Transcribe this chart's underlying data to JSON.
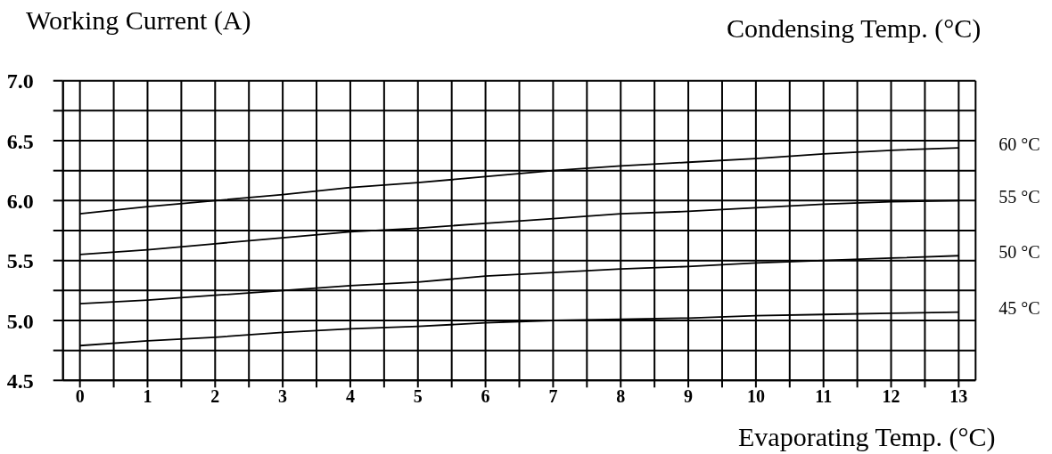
{
  "chart_data": {
    "type": "line",
    "ylabel": "Working Current (A)",
    "legend_title": "Condensing Temp. (°C)",
    "xlabel": "Evaporating Temp. (°C)",
    "x": [
      0,
      1,
      2,
      3,
      4,
      5,
      6,
      7,
      8,
      9,
      10,
      11,
      12,
      13
    ],
    "series": [
      {
        "name": "60 °C",
        "color": "#000000",
        "values": [
          5.89,
          5.95,
          6.0,
          6.05,
          6.11,
          6.15,
          6.2,
          6.25,
          6.29,
          6.32,
          6.35,
          6.39,
          6.42,
          6.44
        ]
      },
      {
        "name": "55 °C",
        "color": "#000000",
        "values": [
          5.55,
          5.59,
          5.64,
          5.69,
          5.74,
          5.77,
          5.81,
          5.85,
          5.89,
          5.91,
          5.94,
          5.97,
          5.99,
          6.0
        ]
      },
      {
        "name": "50 °C",
        "color": "#000000",
        "values": [
          5.14,
          5.17,
          5.21,
          5.25,
          5.29,
          5.32,
          5.37,
          5.4,
          5.43,
          5.45,
          5.48,
          5.5,
          5.52,
          5.54
        ]
      },
      {
        "name": "45 °C",
        "color": "#000000",
        "values": [
          4.79,
          4.83,
          4.86,
          4.9,
          4.93,
          4.95,
          4.98,
          5.0,
          5.01,
          5.02,
          5.04,
          5.05,
          5.06,
          5.07
        ]
      }
    ],
    "xlim": [
      -0.25,
      13.25
    ],
    "ylim": [
      4.5,
      7.0
    ],
    "xticks": [
      0,
      {
        "value": 0.5,
        "label": null
      },
      1,
      {
        "value": 1.5,
        "label": null
      },
      2,
      {
        "value": 2.5,
        "label": null
      },
      3,
      {
        "value": 3.5,
        "label": null
      },
      4,
      {
        "value": 4.5,
        "label": null
      },
      5,
      {
        "value": 5.5,
        "label": null
      },
      6,
      {
        "value": 6.5,
        "label": null
      },
      7,
      {
        "value": 7.5,
        "label": null
      },
      8,
      {
        "value": 8.5,
        "label": null
      },
      9,
      {
        "value": 9.5,
        "label": null
      },
      10,
      {
        "value": 10.5,
        "label": null
      },
      11,
      {
        "value": 11.5,
        "label": null
      },
      12,
      {
        "value": 12.5,
        "label": null
      },
      13
    ],
    "yticks": [
      4.5,
      {
        "value": 4.75,
        "label": null
      },
      {
        "value": 5,
        "label": "5.0"
      },
      {
        "value": 5.25,
        "label": null
      },
      5.5,
      {
        "value": 5.75,
        "label": null
      },
      {
        "value": 6,
        "label": "6.0"
      },
      {
        "value": 6.25,
        "label": null
      },
      6.5,
      {
        "value": 6.75,
        "label": null
      },
      {
        "value": 7,
        "label": "7.0"
      }
    ],
    "grid": true
  }
}
